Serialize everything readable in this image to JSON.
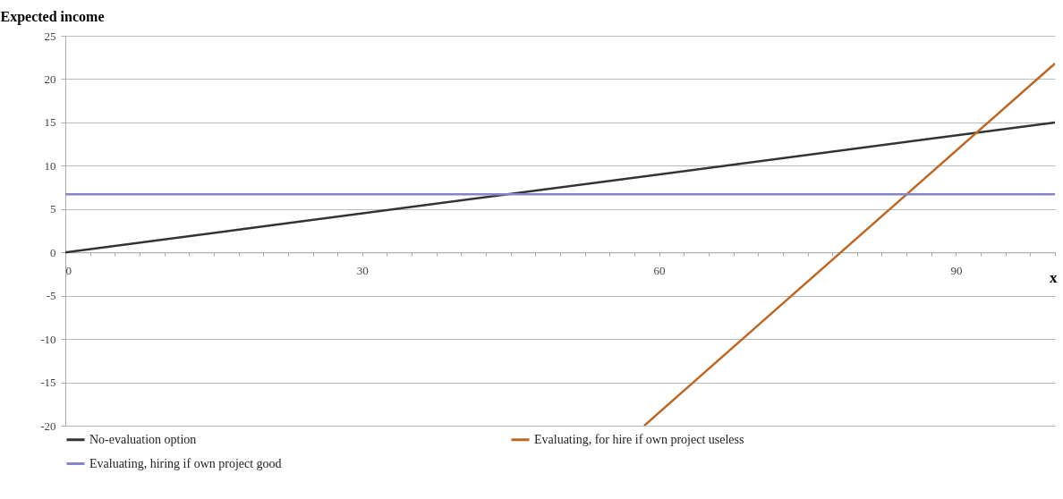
{
  "chart_data": {
    "type": "line",
    "xlabel": "x",
    "ylabel": "Expected income",
    "xlim": [
      0,
      100
    ],
    "ylim": [
      -20,
      25
    ],
    "xticks": [
      0,
      {
        "value": 2.5,
        "label": null
      },
      {
        "value": 5,
        "label": null
      },
      {
        "value": 7.5,
        "label": null
      },
      {
        "value": 10,
        "label": null
      },
      {
        "value": 12.5,
        "label": null
      },
      {
        "value": 15,
        "label": null
      },
      {
        "value": 17.5,
        "label": null
      },
      {
        "value": 20,
        "label": null
      },
      {
        "value": 22.5,
        "label": null
      },
      {
        "value": 25,
        "label": null
      },
      {
        "value": 27.5,
        "label": null
      },
      30,
      {
        "value": 32.5,
        "label": null
      },
      {
        "value": 35,
        "label": null
      },
      {
        "value": 37.5,
        "label": null
      },
      {
        "value": 40,
        "label": null
      },
      {
        "value": 42.5,
        "label": null
      },
      {
        "value": 45,
        "label": null
      },
      {
        "value": 47.5,
        "label": null
      },
      {
        "value": 50,
        "label": null
      },
      {
        "value": 52.5,
        "label": null
      },
      {
        "value": 55,
        "label": null
      },
      {
        "value": 57.5,
        "label": null
      },
      60,
      {
        "value": 62.5,
        "label": null
      },
      {
        "value": 65,
        "label": null
      },
      {
        "value": 67.5,
        "label": null
      },
      {
        "value": 70,
        "label": null
      },
      {
        "value": 72.5,
        "label": null
      },
      {
        "value": 75,
        "label": null
      },
      {
        "value": 77.5,
        "label": null
      },
      {
        "value": 80,
        "label": null
      },
      {
        "value": 82.5,
        "label": null
      },
      {
        "value": 85,
        "label": null
      },
      {
        "value": 87.5,
        "label": null
      },
      90,
      {
        "value": 92.5,
        "label": null
      },
      {
        "value": 95,
        "label": null
      },
      {
        "value": 97.5,
        "label": null
      },
      {
        "value": 100,
        "label": null
      }
    ],
    "yticks": [
      -20,
      -15,
      -10,
      -5,
      0,
      5,
      10,
      15,
      20,
      25
    ],
    "grid": "y",
    "legend": "bottom",
    "marker": "none",
    "line_style": "solid",
    "series": [
      {
        "name": "No-evaluation option",
        "color": "#333333",
        "x": [
          0,
          100
        ],
        "values": [
          0,
          15
        ]
      },
      {
        "name": "Evaluating, for hire if own project useless",
        "color": "#b8692a",
        "x": [
          58.5,
          100
        ],
        "values": [
          -20,
          21.8
        ]
      },
      {
        "name": "Evaluating, hiring if own project good",
        "color": "#8585c8",
        "x": [
          0,
          100
        ],
        "values": [
          6.7,
          6.7
        ]
      }
    ]
  }
}
